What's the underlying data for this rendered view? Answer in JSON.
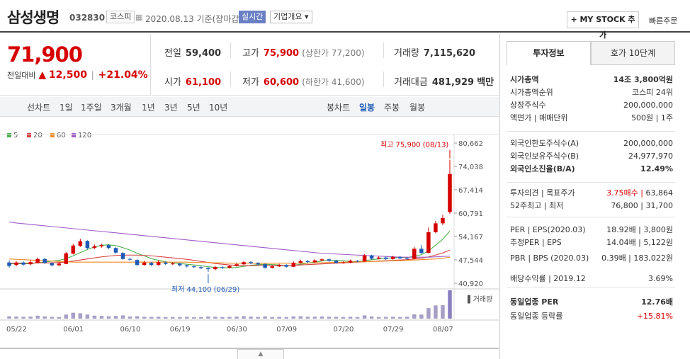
{
  "header": {
    "title": "삼성생명",
    "code": "032830",
    "market_badge": "코스피",
    "date_text": "2020.08.13 기준(장마감)",
    "realtime_badge": "실시간",
    "corp_overview": "기업개요 ▾",
    "mystock_label": "+ MY STOCK 추가",
    "quick_order": "빠른주문"
  },
  "quote": {
    "price": "71,900",
    "change_label": "전일대비",
    "change_arrow": "▲",
    "change_value": "12,500",
    "change_pct": "+21.04%"
  },
  "metrics": {
    "prev_label": "전일",
    "prev_value": "59,400",
    "high_label": "고가",
    "high_value": "75,900",
    "high_note": "(상한가 77,200)",
    "volume_label": "거래량",
    "volume_value": "7,115,620",
    "open_label": "시가",
    "open_value": "61,100",
    "low_label": "저가",
    "low_value": "60,600",
    "low_note": "(하한가 41,600)",
    "amount_label": "거래대금",
    "amount_value": "481,929",
    "amount_unit": "백만"
  },
  "toolbar": {
    "line_chart": "선차트",
    "periods": [
      "1일",
      "1주일",
      "3개월",
      "1년",
      "3년",
      "5년",
      "10년"
    ],
    "candle_chart": "봉차트",
    "candle_periods": [
      "일봉",
      "주봉",
      "월봉"
    ]
  },
  "legend": [
    "5",
    "20",
    "60",
    "120"
  ],
  "chart_data": {
    "type": "candlestick",
    "x_ticks": [
      "05/22",
      "06/01",
      "06/10",
      "06/19",
      "06/30",
      "07/09",
      "07/20",
      "07/29",
      "08/07"
    ],
    "y_ticks": [
      80662,
      74038,
      67414,
      60791,
      54167,
      47544,
      40920
    ],
    "ylim": [
      40920,
      80662
    ],
    "high_annotation": "최고 75,900 (08/13)",
    "low_annotation": "최저 44,100 (06/29)",
    "volume_label": "거래량",
    "candles": [
      {
        "o": 46800,
        "c": 45800,
        "h": 47400,
        "l": 45300
      },
      {
        "o": 46100,
        "c": 46800,
        "h": 47200,
        "l": 45700
      },
      {
        "o": 46800,
        "c": 46200,
        "h": 47100,
        "l": 45900
      },
      {
        "o": 46300,
        "c": 46900,
        "h": 47500,
        "l": 46000
      },
      {
        "o": 46700,
        "c": 47800,
        "h": 48200,
        "l": 46500
      },
      {
        "o": 47800,
        "c": 46700,
        "h": 48100,
        "l": 46400
      },
      {
        "o": 46600,
        "c": 46000,
        "h": 46900,
        "l": 45700
      },
      {
        "o": 46000,
        "c": 46500,
        "h": 46900,
        "l": 45800
      },
      {
        "o": 46400,
        "c": 49400,
        "h": 49800,
        "l": 46300
      },
      {
        "o": 49300,
        "c": 51600,
        "h": 52100,
        "l": 49100
      },
      {
        "o": 51500,
        "c": 52800,
        "h": 53500,
        "l": 51200
      },
      {
        "o": 52900,
        "c": 50900,
        "h": 53100,
        "l": 50500
      },
      {
        "o": 50900,
        "c": 51400,
        "h": 51900,
        "l": 50600
      },
      {
        "o": 51400,
        "c": 51700,
        "h": 52100,
        "l": 51000
      },
      {
        "o": 51700,
        "c": 50900,
        "h": 52000,
        "l": 50600
      },
      {
        "o": 50900,
        "c": 49600,
        "h": 51100,
        "l": 49300
      },
      {
        "o": 49500,
        "c": 47800,
        "h": 49700,
        "l": 47500
      },
      {
        "o": 47800,
        "c": 47600,
        "h": 48200,
        "l": 47300
      },
      {
        "o": 47500,
        "c": 46100,
        "h": 47800,
        "l": 45800
      },
      {
        "o": 46100,
        "c": 46800,
        "h": 47300,
        "l": 45900
      },
      {
        "o": 46700,
        "c": 46100,
        "h": 47000,
        "l": 45800
      },
      {
        "o": 46100,
        "c": 46900,
        "h": 47400,
        "l": 45900
      },
      {
        "o": 46800,
        "c": 46400,
        "h": 47100,
        "l": 46100
      },
      {
        "o": 46400,
        "c": 46500,
        "h": 46900,
        "l": 46100
      },
      {
        "o": 46500,
        "c": 46000,
        "h": 46700,
        "l": 45700
      },
      {
        "o": 46000,
        "c": 45700,
        "h": 46200,
        "l": 45400
      },
      {
        "o": 45700,
        "c": 45500,
        "h": 45900,
        "l": 45200
      },
      {
        "o": 45500,
        "c": 45200,
        "h": 45700,
        "l": 44900
      },
      {
        "o": 45200,
        "c": 44900,
        "h": 45500,
        "l": 44100
      },
      {
        "o": 44900,
        "c": 45500,
        "h": 45800,
        "l": 44600
      },
      {
        "o": 45500,
        "c": 45300,
        "h": 45800,
        "l": 45000
      },
      {
        "o": 45300,
        "c": 45800,
        "h": 46100,
        "l": 45100
      },
      {
        "o": 45800,
        "c": 46300,
        "h": 46700,
        "l": 45600
      },
      {
        "o": 46300,
        "c": 46900,
        "h": 47200,
        "l": 46100
      },
      {
        "o": 46900,
        "c": 46600,
        "h": 47200,
        "l": 46300
      },
      {
        "o": 46600,
        "c": 46300,
        "h": 46900,
        "l": 46000
      },
      {
        "o": 46300,
        "c": 45300,
        "h": 46500,
        "l": 45100
      },
      {
        "o": 45300,
        "c": 45700,
        "h": 46000,
        "l": 45100
      },
      {
        "o": 45700,
        "c": 46100,
        "h": 46400,
        "l": 45500
      },
      {
        "o": 46100,
        "c": 45600,
        "h": 46300,
        "l": 45400
      },
      {
        "o": 45600,
        "c": 46700,
        "h": 47100,
        "l": 45500
      },
      {
        "o": 46700,
        "c": 47200,
        "h": 47600,
        "l": 46500
      },
      {
        "o": 47200,
        "c": 46900,
        "h": 47500,
        "l": 46600
      },
      {
        "o": 46900,
        "c": 47400,
        "h": 47700,
        "l": 46700
      },
      {
        "o": 47400,
        "c": 47700,
        "h": 48000,
        "l": 47200
      },
      {
        "o": 47700,
        "c": 47300,
        "h": 48000,
        "l": 47000
      },
      {
        "o": 47300,
        "c": 46700,
        "h": 47500,
        "l": 46500
      },
      {
        "o": 46700,
        "c": 46800,
        "h": 47100,
        "l": 46500
      },
      {
        "o": 46800,
        "c": 47300,
        "h": 47600,
        "l": 46600
      },
      {
        "o": 47300,
        "c": 47100,
        "h": 47500,
        "l": 46900
      },
      {
        "o": 47100,
        "c": 48800,
        "h": 49200,
        "l": 47000
      },
      {
        "o": 48800,
        "c": 47900,
        "h": 49000,
        "l": 47600
      },
      {
        "o": 47900,
        "c": 48200,
        "h": 48500,
        "l": 47700
      },
      {
        "o": 48200,
        "c": 47800,
        "h": 48500,
        "l": 47500
      },
      {
        "o": 47800,
        "c": 48400,
        "h": 48700,
        "l": 47600
      },
      {
        "o": 48400,
        "c": 48000,
        "h": 48600,
        "l": 47700
      },
      {
        "o": 48000,
        "c": 47900,
        "h": 48300,
        "l": 47600
      },
      {
        "o": 47900,
        "c": 50700,
        "h": 51200,
        "l": 47800
      },
      {
        "o": 50700,
        "c": 49500,
        "h": 51800,
        "l": 49200
      },
      {
        "o": 49500,
        "c": 55400,
        "h": 56700,
        "l": 49400
      },
      {
        "o": 55400,
        "c": 57900,
        "h": 58600,
        "l": 55100
      },
      {
        "o": 57900,
        "c": 59400,
        "h": 60300,
        "l": 57400
      },
      {
        "o": 61100,
        "c": 71900,
        "h": 75900,
        "l": 60600
      }
    ],
    "ma": {
      "5": [
        46400,
        46500,
        46400,
        46500,
        46700,
        46900,
        47200,
        47400,
        47900,
        48700,
        49600,
        50500,
        51200,
        51700,
        51800,
        51600,
        51000,
        50300,
        49400,
        48700,
        47900,
        47400,
        47000,
        46700,
        46500,
        46300,
        46100,
        45900,
        45600,
        45400,
        45300,
        45300,
        45400,
        45700,
        46000,
        46200,
        46300,
        46200,
        46100,
        45900,
        46000,
        46300,
        46600,
        46900,
        47200,
        47400,
        47400,
        47300,
        47100,
        47000,
        47300,
        47600,
        47800,
        48000,
        48100,
        48200,
        48200,
        48600,
        49000,
        50100,
        51700,
        53400,
        55700
      ],
      "20": [
        46600,
        46600,
        46600,
        46600,
        46700,
        46700,
        46700,
        46800,
        46900,
        47200,
        47500,
        47800,
        48100,
        48400,
        48600,
        48800,
        48900,
        48900,
        48900,
        48800,
        48700,
        48500,
        48300,
        48100,
        47900,
        47700,
        47400,
        47100,
        46800,
        46500,
        46300,
        46100,
        46000,
        45900,
        45900,
        45900,
        45900,
        45900,
        45900,
        45900,
        46000,
        46100,
        46200,
        46300,
        46400,
        46500,
        46600,
        46700,
        46800,
        46900,
        47000,
        47100,
        47200,
        47300,
        47400,
        47500,
        47600,
        47800,
        48000,
        48400,
        48900,
        49500,
        50300
      ],
      "60": [
        47800,
        47700,
        47600,
        47500,
        47400,
        47300,
        47200,
        47100,
        47000,
        46900,
        46900,
        46900,
        46900,
        46900,
        46900,
        46900,
        46900,
        46900,
        46900,
        46900,
        46900,
        46900,
        46900,
        46900,
        46900,
        46900,
        46800,
        46800,
        46800,
        46700,
        46700,
        46600,
        46600,
        46600,
        46600,
        46600,
        46600,
        46600,
        46600,
        46600,
        46600,
        46600,
        46600,
        46700,
        46700,
        46800,
        46800,
        46900,
        46900,
        47000,
        47000,
        47100,
        47100,
        47200,
        47300,
        47300,
        47400,
        47500,
        47600,
        47700,
        47800,
        48000,
        48300
      ],
      "120": [
        58300,
        58000,
        57800,
        57600,
        57400,
        57200,
        57000,
        56800,
        56600,
        56400,
        56200,
        56000,
        55800,
        55600,
        55400,
        55200,
        55000,
        54800,
        54600,
        54400,
        54200,
        54000,
        53800,
        53600,
        53400,
        53200,
        53000,
        52800,
        52600,
        52400,
        52200,
        52000,
        51800,
        51600,
        51400,
        51200,
        51000,
        50800,
        50600,
        50400,
        50200,
        50000,
        49800,
        49600,
        49400,
        49300,
        49200,
        49100,
        49000,
        48900,
        48800,
        48700,
        48600,
        48500,
        48400,
        48300,
        48300,
        48300,
        48300,
        48300,
        48400,
        48500,
        48600
      ]
    },
    "volumes": [
      18,
      16,
      14,
      15,
      22,
      17,
      13,
      12,
      30,
      44,
      40,
      30,
      22,
      20,
      18,
      20,
      24,
      16,
      18,
      14,
      13,
      14,
      12,
      12,
      12,
      14,
      11,
      12,
      16,
      14,
      12,
      13,
      15,
      18,
      15,
      13,
      16,
      12,
      13,
      12,
      17,
      18,
      14,
      15,
      16,
      14,
      13,
      12,
      14,
      12,
      24,
      16,
      12,
      13,
      14,
      12,
      14,
      32,
      30,
      78,
      98,
      100,
      210
    ]
  },
  "right_panel": {
    "tab_active": "투자정보",
    "tab_other": "호가 10단계",
    "rows": [
      {
        "k": "시가총액",
        "v": "14조 3,800억원",
        "bold": true
      },
      {
        "k": "시가총액순위",
        "v": "코스피 24위"
      },
      {
        "k": "상장주식수",
        "v": "200,000,000"
      },
      {
        "k": "액면가 | 매매단위",
        "v": "500원 | 1주"
      },
      {
        "k": "외국인한도주식수(A)",
        "v": "200,000,000"
      },
      {
        "k": "외국인보유주식수(B)",
        "v": "24,977,970"
      },
      {
        "k": "외국인소진율(B/A)",
        "v": "12.49%",
        "bold": true
      },
      {
        "k": "투자의견 | 목표주가",
        "v_red": "3.75매수",
        "v": "63,864"
      },
      {
        "k": "52주최고 | 최저",
        "v": "76,800 | 31,700"
      },
      {
        "k": "PER | EPS(2020.03)",
        "v": "18.92배 | 3,800원"
      },
      {
        "k": "추정PER | EPS",
        "v": "14.04배 | 5,122원"
      },
      {
        "k": "PBR | BPS (2020.03)",
        "v": "0.39배 | 183,022원"
      },
      {
        "k": "배당수익률 | 2019.12",
        "v": "3.69%"
      },
      {
        "k": "동일업종 PER",
        "v": "12.76배",
        "bold": true
      },
      {
        "k": "동일업종 등락률",
        "v": "+15.81%"
      }
    ]
  },
  "colors": {
    "up": "#d60000",
    "down": "#1e5ab4",
    "ma5": "#4cae4c",
    "ma20": "#d64040",
    "ma60": "#f08a24",
    "ma120": "#a05cc8",
    "volume": "#a79fc6"
  }
}
